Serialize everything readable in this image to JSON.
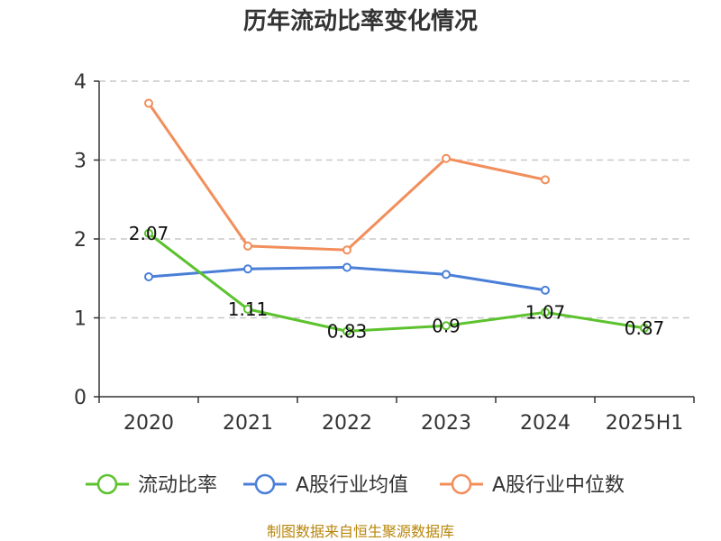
{
  "chart_data": {
    "type": "line",
    "title": "历年流动比率变化情况",
    "categories": [
      "2020",
      "2021",
      "2022",
      "2023",
      "2024",
      "2025H1"
    ],
    "ylim": [
      0,
      4
    ],
    "yticks": [
      0,
      1,
      2,
      3,
      4
    ],
    "grid": true,
    "legend_position": "bottom",
    "series": [
      {
        "name": "流动比率",
        "color": "#5cc22e",
        "values": [
          2.07,
          1.11,
          0.83,
          0.9,
          1.07,
          0.87
        ],
        "labels": [
          "2.07",
          "1.11",
          "0.83",
          "0.9",
          "1.07",
          "0.87"
        ]
      },
      {
        "name": "A股行业均值",
        "color": "#4a7fd8",
        "values": [
          1.52,
          1.62,
          1.64,
          1.55,
          1.35,
          null
        ]
      },
      {
        "name": "A股行业中位数",
        "color": "#f28e5b",
        "values": [
          3.72,
          1.91,
          1.86,
          3.02,
          2.75,
          null
        ]
      }
    ],
    "source": "制图数据来自恒生聚源数据库"
  }
}
